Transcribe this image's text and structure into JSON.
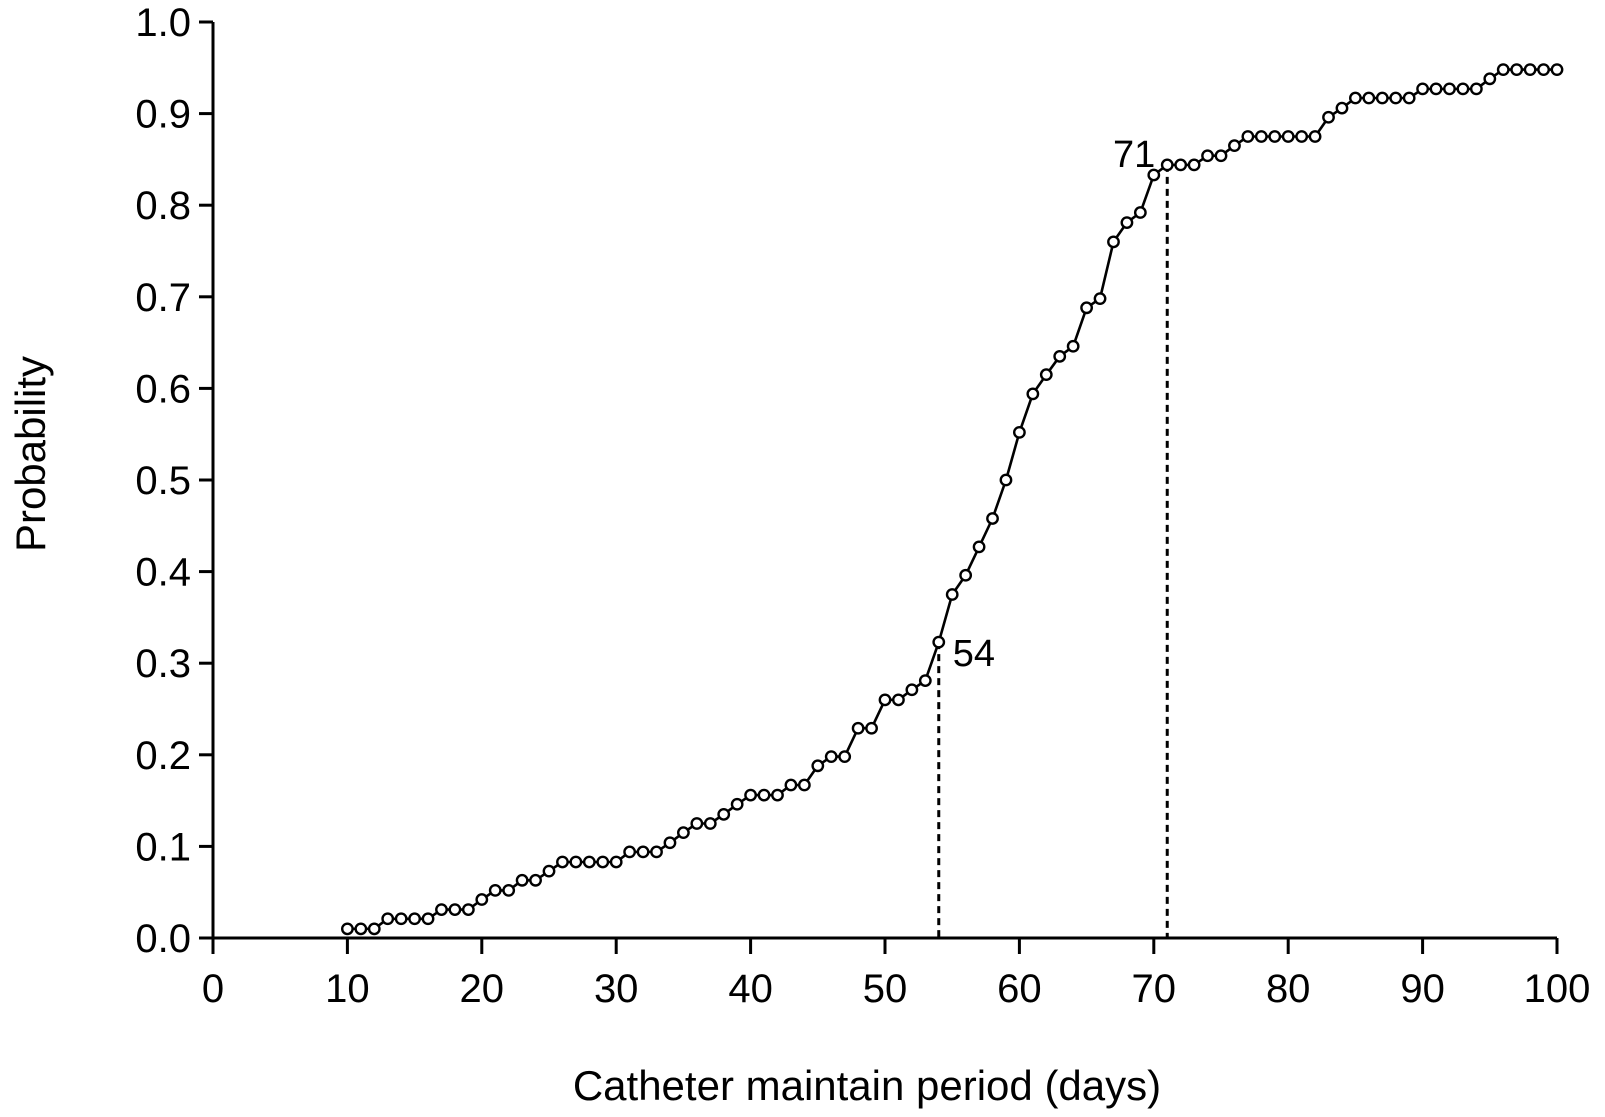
{
  "chart_data": {
    "type": "line",
    "title": "",
    "xlabel": "Catheter maintain period (days)",
    "ylabel": "Probability",
    "xlim": [
      0,
      100
    ],
    "ylim": [
      0,
      1.0
    ],
    "x_ticks": [
      "0",
      "10",
      "20",
      "30",
      "40",
      "50",
      "60",
      "70",
      "80",
      "90",
      "100"
    ],
    "y_ticks": [
      "0.0",
      "0.1",
      "0.2",
      "0.3",
      "0.4",
      "0.5",
      "0.6",
      "0.7",
      "0.8",
      "0.9",
      "1.0"
    ],
    "grid": false,
    "legend": "none",
    "marker": "open-circle",
    "line_color": "#000000",
    "series": [
      {
        "x": [
          10,
          11,
          12,
          13,
          14,
          15,
          16,
          17,
          18,
          19,
          20,
          21,
          22,
          23,
          24,
          25,
          26,
          27,
          28,
          29,
          30,
          31,
          32,
          33,
          34,
          35,
          36,
          37,
          38,
          39,
          40,
          41,
          42,
          43,
          44,
          45,
          46,
          47,
          48,
          49,
          50,
          51,
          52,
          53,
          54,
          55,
          56,
          57,
          58,
          59,
          60,
          61,
          62,
          63,
          64,
          65,
          66,
          67,
          68,
          69,
          70,
          71,
          72,
          73,
          74,
          75,
          76,
          77,
          78,
          79,
          80,
          81,
          82,
          83,
          84,
          85,
          86,
          87,
          88,
          89,
          90,
          91,
          92,
          93,
          94,
          95,
          96,
          97,
          98,
          99,
          100
        ],
        "y": [
          0.01,
          0.01,
          0.01,
          0.021,
          0.021,
          0.021,
          0.021,
          0.031,
          0.031,
          0.031,
          0.042,
          0.052,
          0.052,
          0.063,
          0.063,
          0.073,
          0.083,
          0.083,
          0.083,
          0.083,
          0.083,
          0.094,
          0.094,
          0.094,
          0.104,
          0.115,
          0.125,
          0.125,
          0.135,
          0.146,
          0.156,
          0.156,
          0.156,
          0.167,
          0.167,
          0.188,
          0.198,
          0.198,
          0.229,
          0.229,
          0.26,
          0.26,
          0.271,
          0.281,
          0.323,
          0.375,
          0.396,
          0.427,
          0.458,
          0.5,
          0.552,
          0.594,
          0.615,
          0.635,
          0.646,
          0.688,
          0.698,
          0.76,
          0.781,
          0.792,
          0.833,
          0.844,
          0.844,
          0.844,
          0.854,
          0.854,
          0.865,
          0.875,
          0.875,
          0.875,
          0.875,
          0.875,
          0.875,
          0.896,
          0.906,
          0.917,
          0.917,
          0.917,
          0.917,
          0.917,
          0.927,
          0.927,
          0.927,
          0.927,
          0.927,
          0.938,
          0.948,
          0.948,
          0.948,
          0.948,
          0.948
        ]
      }
    ],
    "reference_lines": [
      {
        "x": 54,
        "y": 0.323,
        "label": "54",
        "style": "dashed"
      },
      {
        "x": 71,
        "y": 0.844,
        "label": "71",
        "style": "dashed"
      }
    ]
  }
}
